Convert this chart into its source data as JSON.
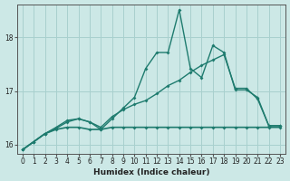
{
  "xlabel": "Humidex (Indice chaleur)",
  "xlim": [
    -0.5,
    23.5
  ],
  "ylim": [
    15.82,
    18.62
  ],
  "yticks": [
    16,
    17,
    18
  ],
  "xticks": [
    0,
    1,
    2,
    3,
    4,
    5,
    6,
    7,
    8,
    9,
    10,
    11,
    12,
    13,
    14,
    15,
    16,
    17,
    18,
    19,
    20,
    21,
    22,
    23
  ],
  "bg_color": "#cce8e6",
  "grid_color": "#a8d0ce",
  "line_color": "#1e7b6e",
  "line1_y": [
    15.9,
    16.05,
    16.2,
    16.28,
    16.32,
    16.32,
    16.28,
    16.28,
    16.32,
    16.32,
    16.32,
    16.32,
    16.32,
    16.32,
    16.32,
    16.32,
    16.32,
    16.32,
    16.32,
    16.32,
    16.32,
    16.32,
    16.32,
    16.32
  ],
  "line2_y": [
    15.9,
    16.05,
    16.2,
    16.3,
    16.42,
    16.48,
    16.42,
    16.32,
    16.52,
    16.65,
    16.75,
    16.82,
    16.95,
    17.1,
    17.2,
    17.35,
    17.48,
    17.58,
    17.68,
    17.05,
    17.05,
    16.85,
    16.35,
    16.35
  ],
  "line3_y": [
    15.9,
    16.05,
    16.2,
    16.32,
    16.45,
    16.48,
    16.42,
    16.28,
    16.48,
    16.68,
    16.88,
    17.42,
    17.72,
    17.72,
    18.52,
    17.42,
    17.25,
    17.85,
    17.72,
    17.02,
    17.02,
    16.88,
    16.35,
    16.35
  ]
}
